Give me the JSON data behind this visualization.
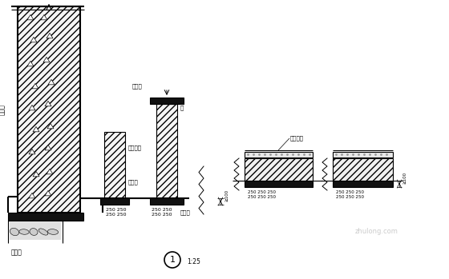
{
  "bg_color": "#ffffff",
  "line_color": "#000000",
  "fig_width": 5.6,
  "fig_height": 3.49,
  "dpi": 100,
  "labels": {
    "retaining_wall": "挡土墙",
    "sump_frame": "集水框架",
    "drain_pipe": "疏水管",
    "sump": "集水井",
    "collection_trough": "集流沟",
    "beam": "梁",
    "waterproof_layer": "疏水层",
    "soil_cushion": "素砼垫层",
    "circle_label": "1",
    "scale": "1:25",
    "dim_label": "≥100"
  }
}
